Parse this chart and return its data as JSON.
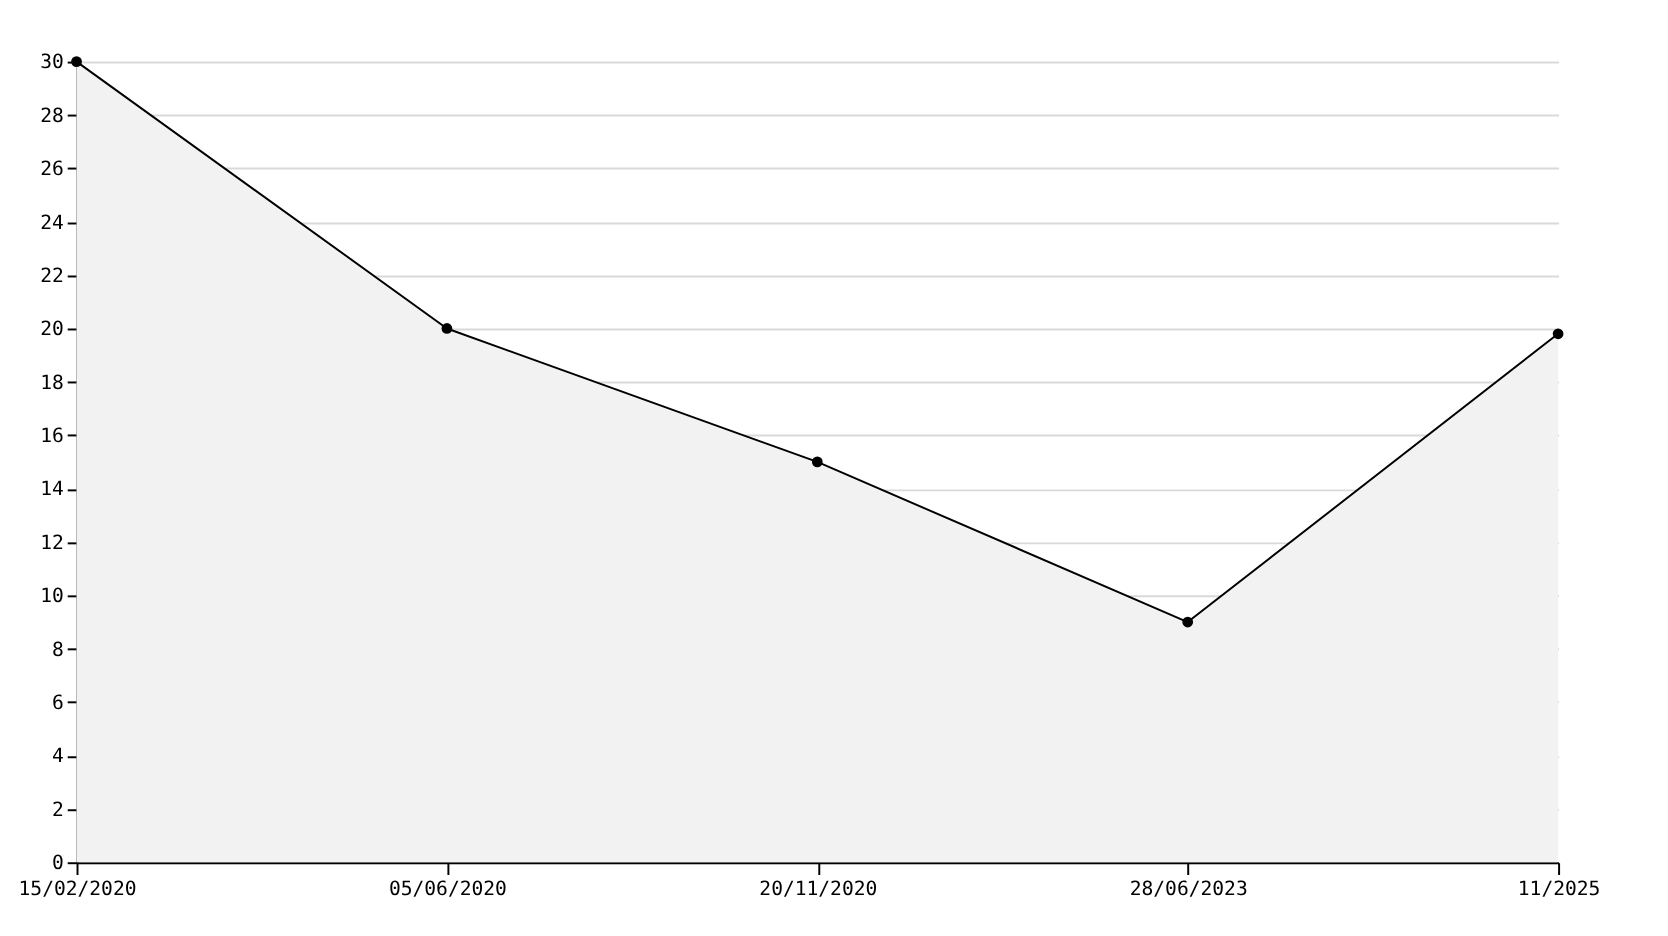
{
  "chart_data": {
    "type": "area",
    "categories": [
      "15/02/2020",
      "05/06/2020",
      "20/11/2020",
      "28/06/2023",
      "11/2025"
    ],
    "series": [
      {
        "color": "#000000",
        "values": [
          30,
          20,
          15,
          9,
          19.8
        ]
      }
    ],
    "ylim": [
      0,
      30
    ],
    "yticks": [
      0,
      2,
      4,
      6,
      8,
      10,
      12,
      14,
      16,
      18,
      20,
      22,
      24,
      26,
      28,
      30
    ],
    "grid": "y",
    "marker": "circle",
    "line_style": "solid"
  }
}
